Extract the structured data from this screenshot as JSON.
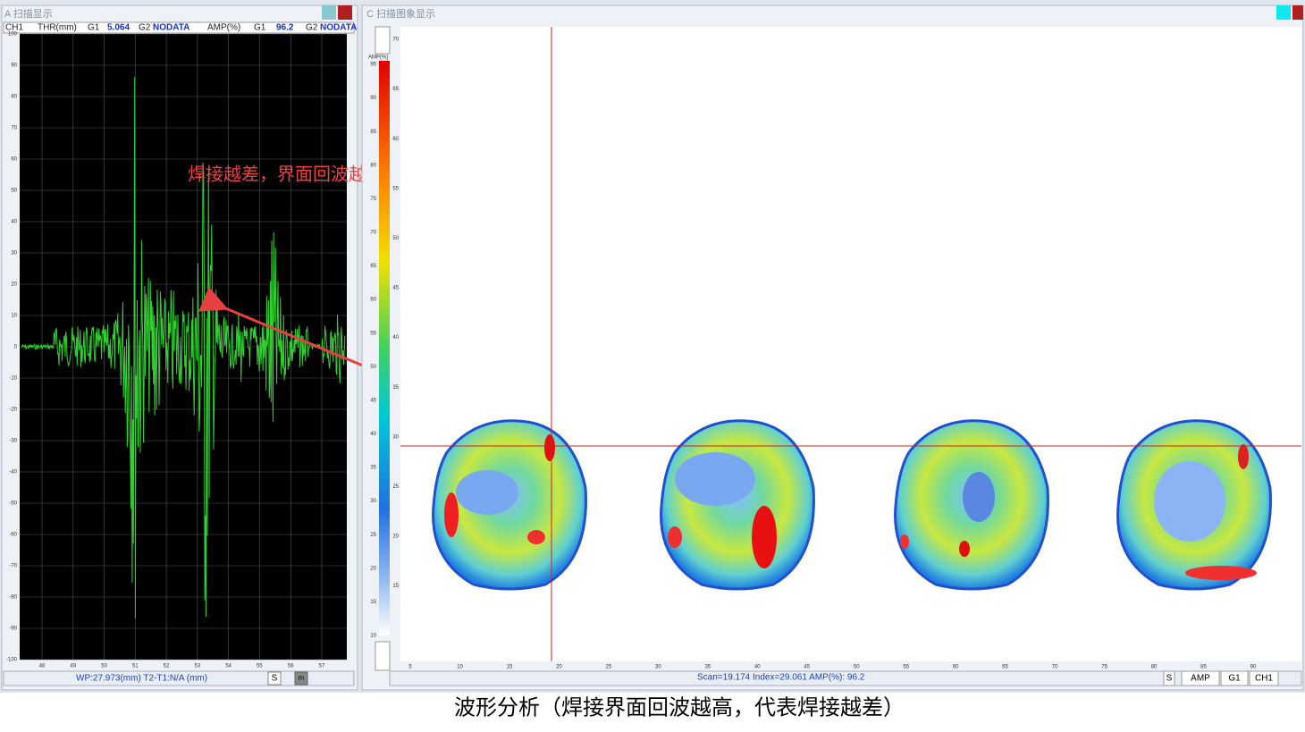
{
  "a_panel": {
    "title": "A 扫描显示",
    "toolbar": [
      "CH1",
      "THR(mm)",
      "G1",
      "5.064",
      "G2",
      "NODATA",
      "AMP(%)",
      "G1",
      "96.2",
      "G2",
      "NODATA"
    ],
    "y_ticks": [
      100,
      90,
      80,
      70,
      60,
      50,
      40,
      30,
      20,
      10,
      0,
      -10,
      -20,
      -30,
      -40,
      -50,
      -60,
      -70,
      -80,
      -90,
      -100
    ],
    "x_ticks": [
      48,
      49,
      50,
      51,
      52,
      53,
      54,
      55,
      56,
      57
    ],
    "annotation": "焊接越差，界面回波越高",
    "status": "WP:27.973(mm)  T2-T1:N/A (mm)",
    "buttons": [
      "S",
      "m"
    ]
  },
  "c_panel": {
    "title": "C 扫描图象显示",
    "colorbar_label": "AMP(%)",
    "colorbar_ticks": [
      95,
      90,
      85,
      80,
      75,
      70,
      65,
      60,
      55,
      50,
      45,
      40,
      35,
      30,
      25,
      20,
      15,
      10
    ],
    "y_ticks": [
      70,
      65,
      60,
      55,
      50,
      45,
      40,
      35,
      30,
      25,
      20,
      15
    ],
    "x_ticks": [
      5,
      10,
      15,
      20,
      25,
      30,
      35,
      40,
      45,
      50,
      55,
      60,
      65,
      70,
      75,
      80,
      85,
      90
    ],
    "status": "Scan=19.174 Index=29.061  AMP(%): 96.2",
    "buttons": [
      "S",
      "AMP",
      "G1",
      "CH1"
    ]
  },
  "caption": "波形分析（焊接界面回波越高，代表焊接越差）"
}
